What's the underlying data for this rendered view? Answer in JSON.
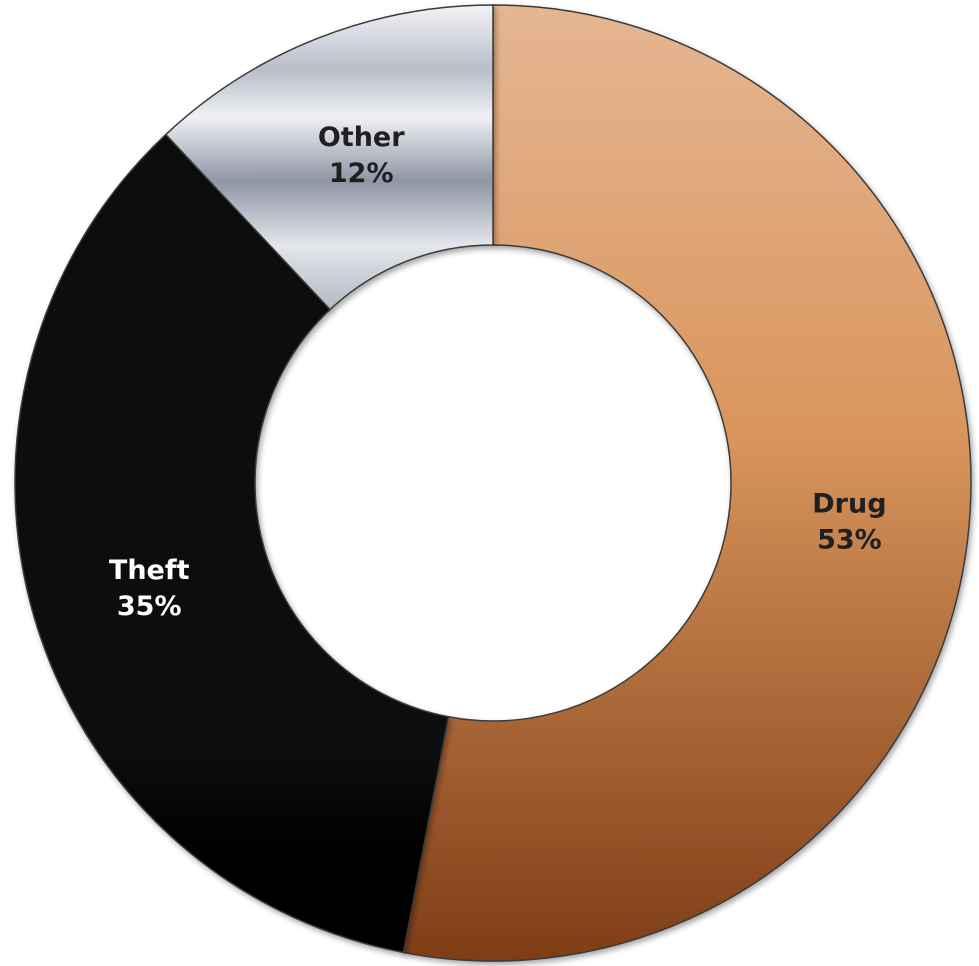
{
  "chart_data": {
    "type": "pie",
    "donut": true,
    "title": "",
    "legend": "none",
    "slices": [
      {
        "label": "Drug",
        "value": 53,
        "display": "53%",
        "color_top": "#e5b692",
        "color_bottom": "#7f3d16",
        "label_color": "#1f1f1f"
      },
      {
        "label": "Theft",
        "value": 35,
        "display": "35%",
        "color_top": "#0a0a0a",
        "color_bottom": "#050505",
        "label_color": "#ffffff"
      },
      {
        "label": "Other",
        "value": 12,
        "display": "12%",
        "color_top": "#cfd3dc",
        "color_bottom": "#9aa0ad",
        "label_color": "#1f1f1f"
      }
    ]
  }
}
